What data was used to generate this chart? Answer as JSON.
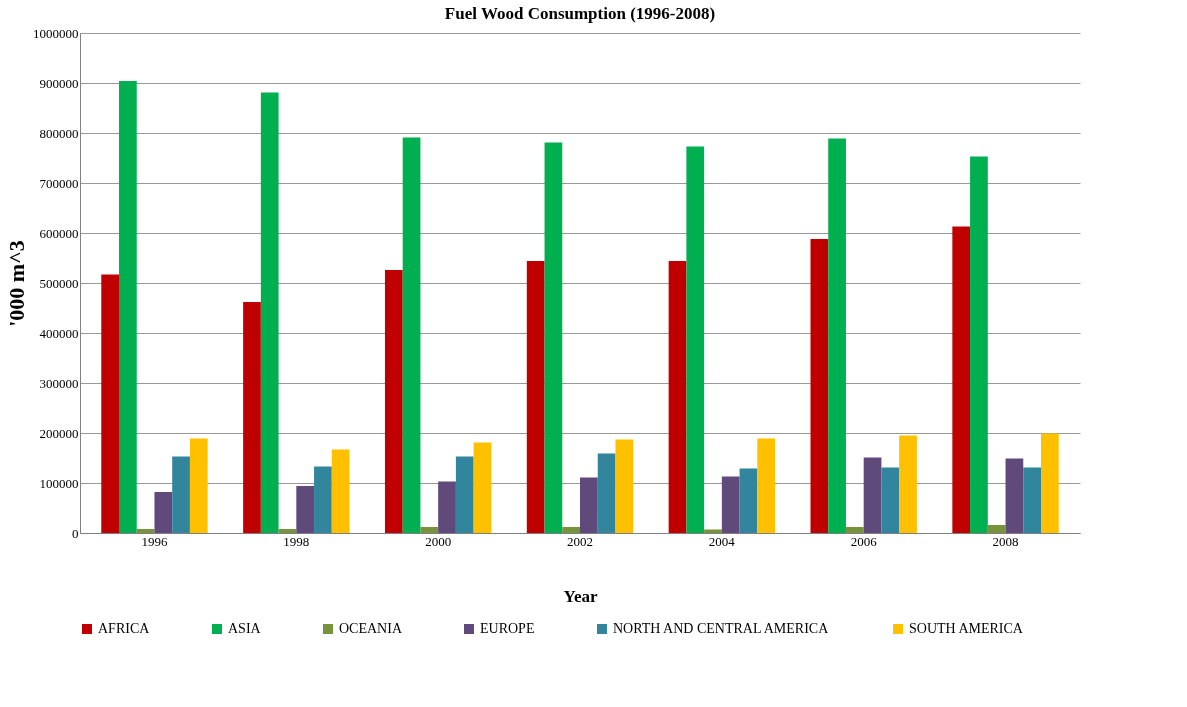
{
  "chart_data": {
    "type": "bar",
    "title": "Fuel Wood Consumption (1996-2008)",
    "xlabel": "Year",
    "ylabel": "'000 m^3",
    "categories": [
      "1996",
      "1998",
      "2000",
      "2002",
      "2004",
      "2006",
      "2008"
    ],
    "series": [
      {
        "name": "AFRICA",
        "color": "#c00000",
        "values": [
          517000,
          462000,
          526000,
          544000,
          544000,
          588000,
          613000
        ]
      },
      {
        "name": "ASIA",
        "color": "#00b050",
        "values": [
          904000,
          881000,
          791000,
          781000,
          773000,
          789000,
          753000
        ]
      },
      {
        "name": "OCEANIA",
        "color": "#77933c",
        "values": [
          8000,
          8000,
          12000,
          12000,
          7000,
          12000,
          16000
        ]
      },
      {
        "name": "EUROPE",
        "color": "#604a7b",
        "values": [
          82000,
          94000,
          103000,
          111000,
          113000,
          151000,
          149000
        ]
      },
      {
        "name": "NORTH AND CENTRAL AMERICA",
        "color": "#31859c",
        "values": [
          153000,
          133000,
          153000,
          159000,
          129000,
          131000,
          131000
        ]
      },
      {
        "name": "SOUTH AMERICA",
        "color": "#ffc000",
        "values": [
          189000,
          167000,
          181000,
          187000,
          189000,
          195000,
          199000
        ]
      }
    ],
    "ylim": [
      0,
      1000000
    ],
    "yticks": [
      0,
      100000,
      200000,
      300000,
      400000,
      500000,
      600000,
      700000,
      800000,
      900000,
      1000000
    ],
    "grid": "y",
    "legend": "bottom"
  }
}
